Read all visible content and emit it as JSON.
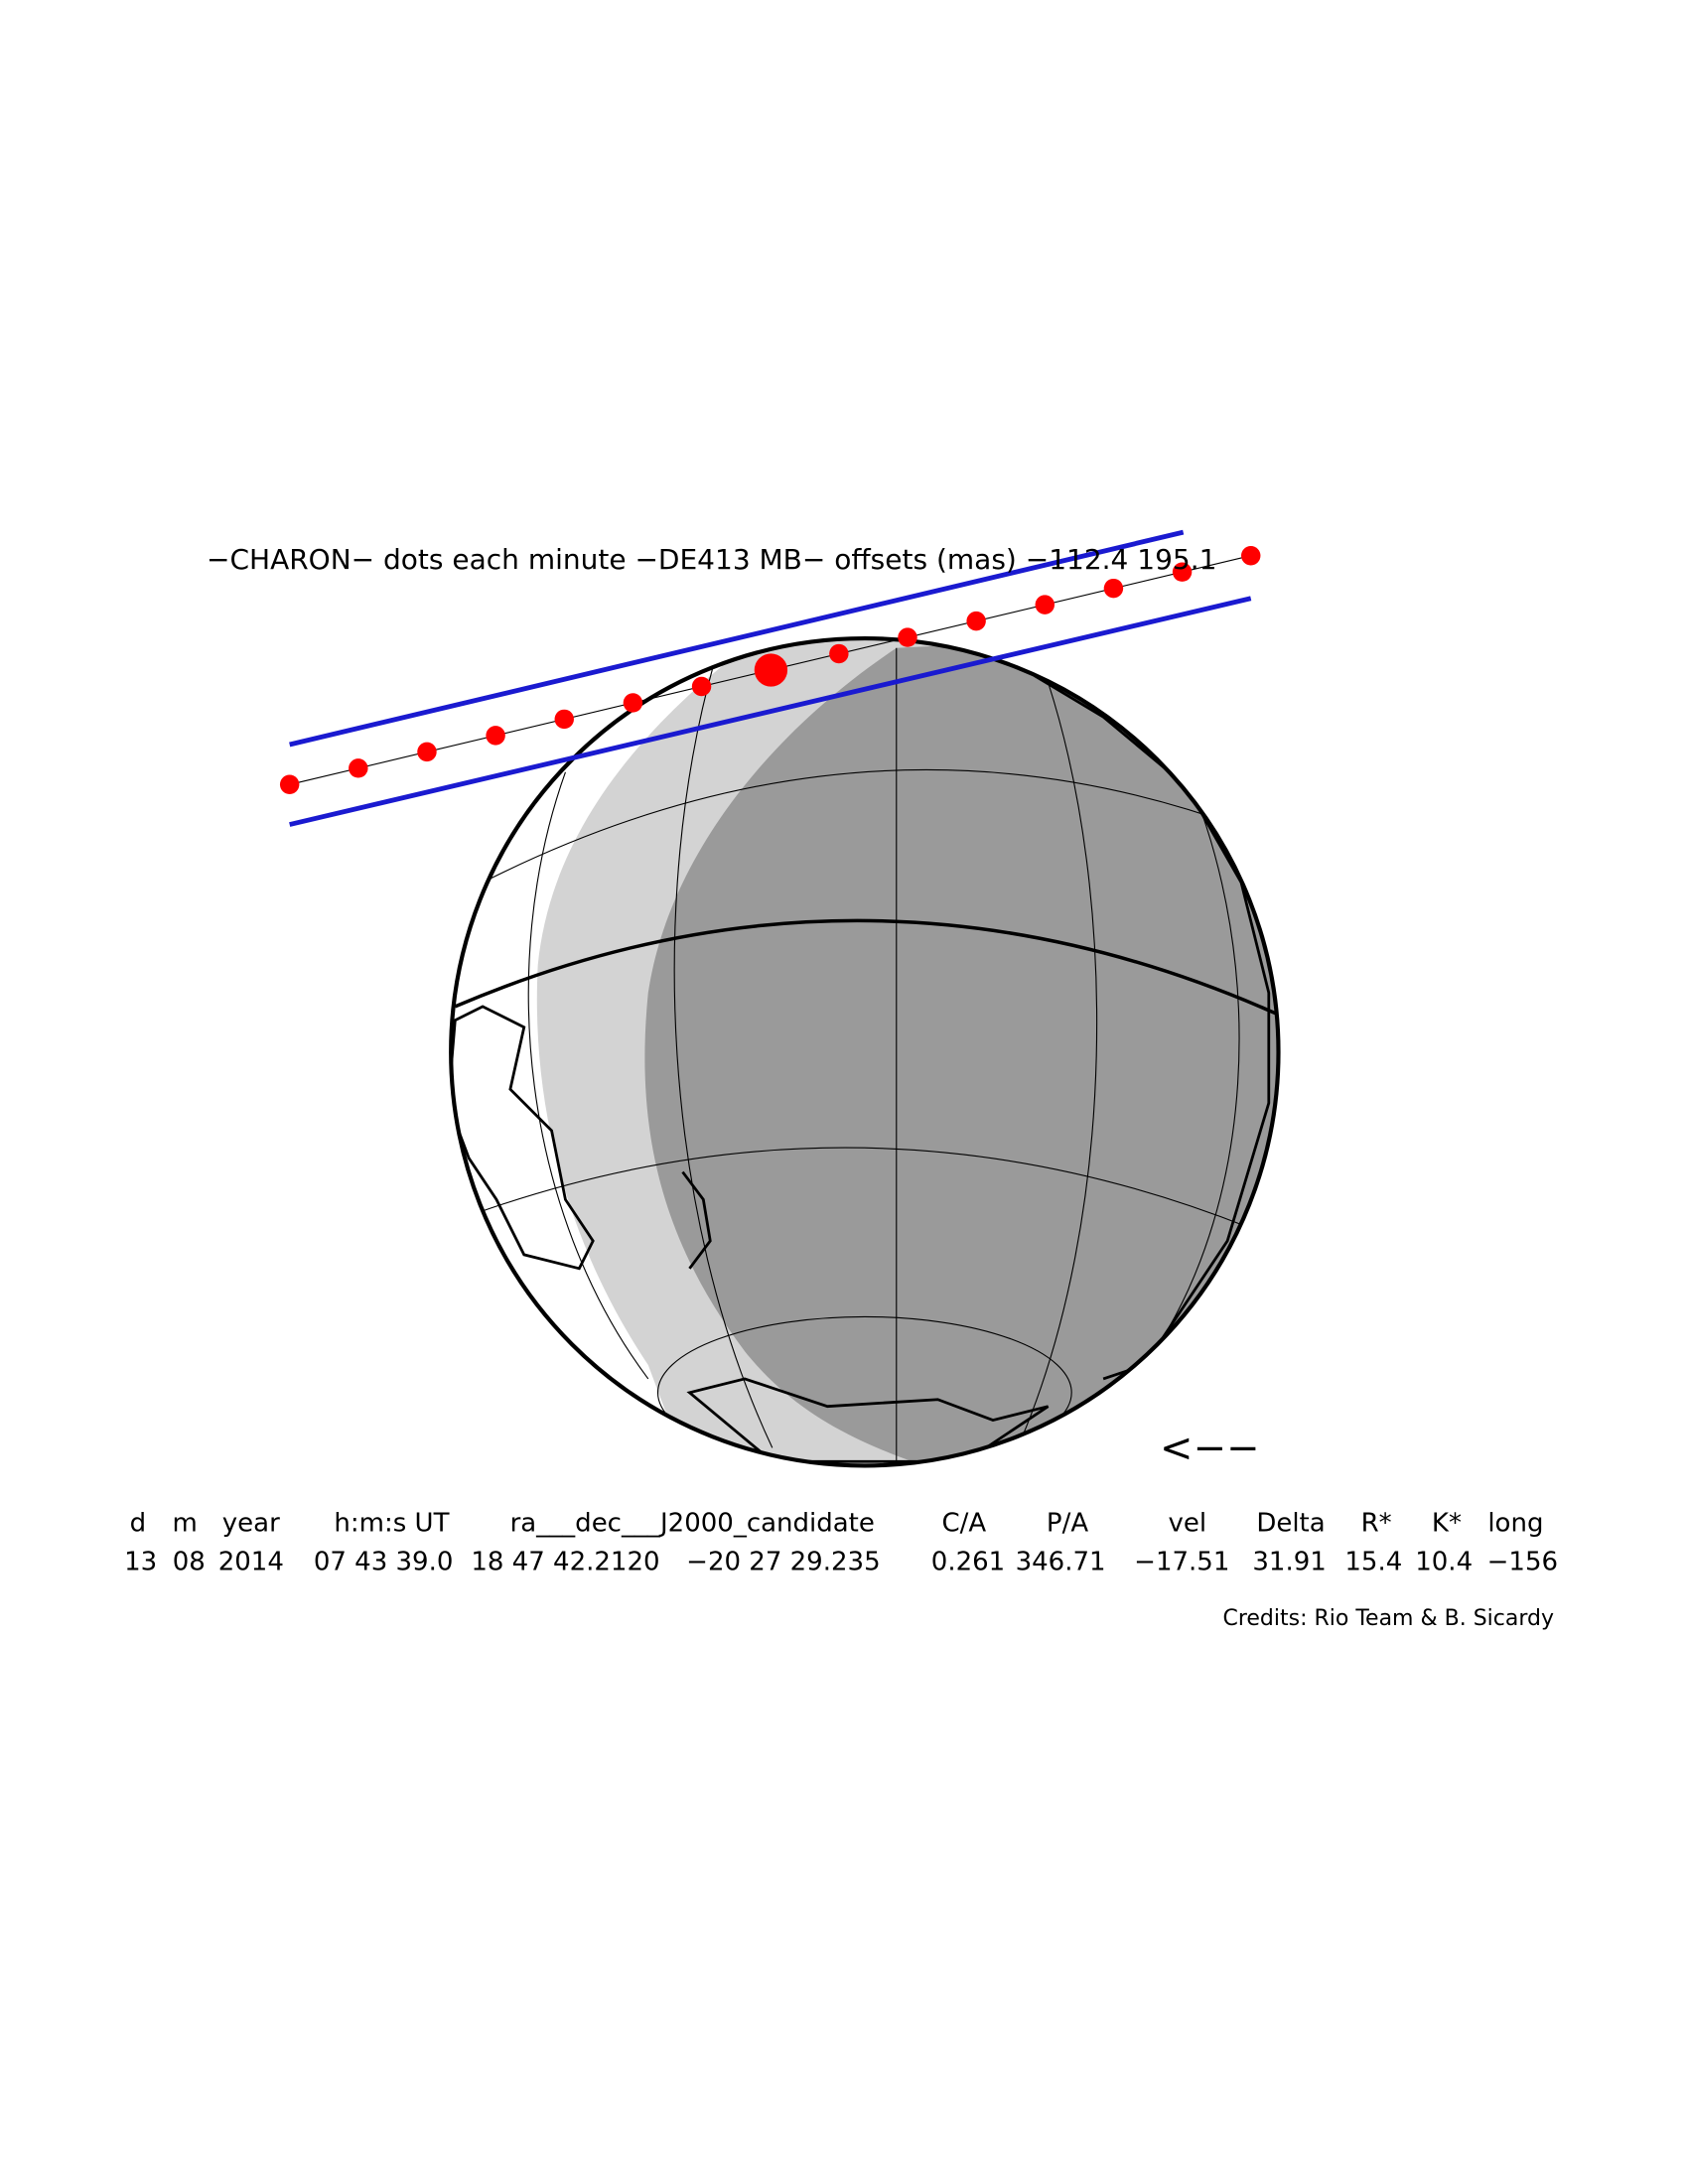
{
  "title": "−CHARON− dots each minute −DE413 MB− offsets (mas) −112.4   195.1",
  "direction_arrow": "<−−",
  "table": {
    "header": [
      "d",
      "m",
      "year",
      "h:m:s UT",
      "ra___dec___J2000_candidate",
      "C/A",
      "P/A",
      "vel",
      "Delta",
      "R*",
      "K*",
      "long"
    ],
    "row": [
      "13",
      "08",
      "2014",
      "07 43 39.0",
      "18 47 42.2120",
      "−20 27 29.235",
      "0.261",
      "346.71",
      "−17.51",
      "31.91",
      "15.4",
      "10.4",
      "−156"
    ]
  },
  "credits": "Credits: Rio Team & B. Sicardy"
}
